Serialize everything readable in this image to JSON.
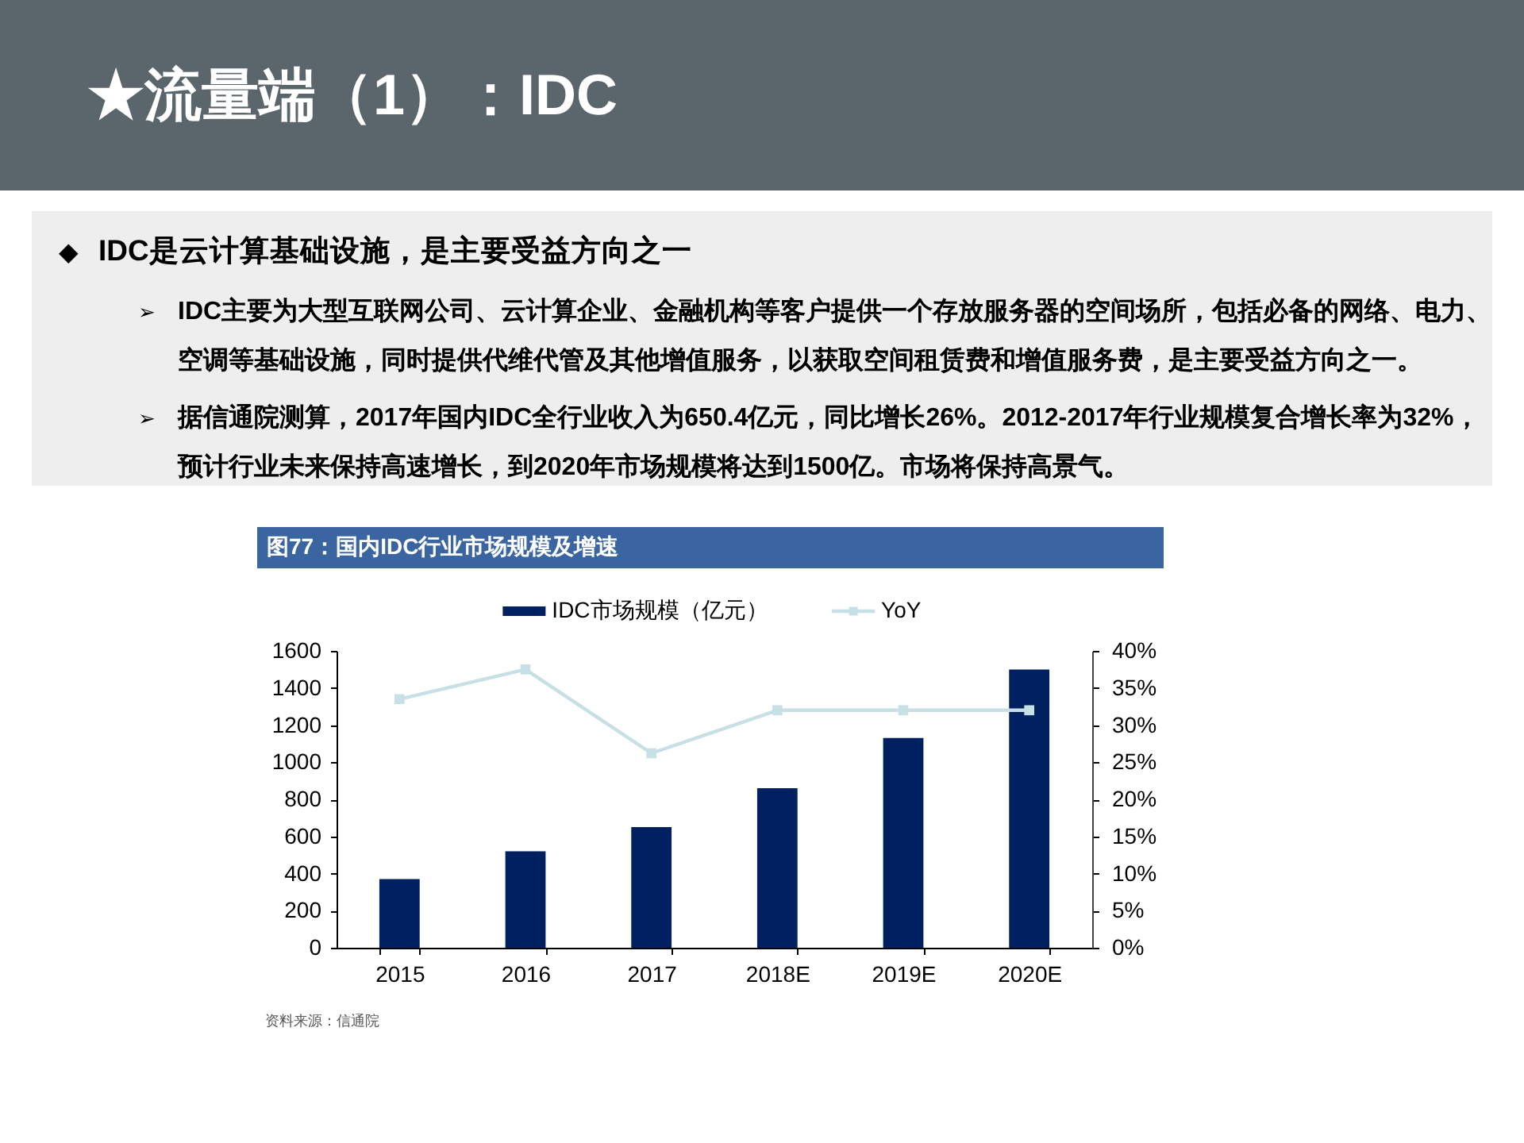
{
  "chart_data": {
    "type": "bar",
    "title": "★流量端（1）：IDC",
    "subtitle": "图77：国内IDC行业市场规模及增速",
    "annotations": [
      "◆ IDC是云计算基础设施，是主要受益方向之一",
      "➢ IDC主要为大型互联网公司、云计算企业、金融机构等客户提供一个存放服务器的空间场所，包括必备的网络、电力、空调等基础设施，同时提供代维代管及其他增值服务，以获取空间租赁费和增值服务费，是主要受益方向之一。",
      "➢ 据信通院测算，2017年国内IDC全行业收入为650.4亿元，同比增长26%。2012-2017年行业规模复合增长率为32%，预计行业未来保持高速增长，到2020年市场规模将达到1500亿。市场将保持高景气。",
      "资料来源：信通院"
    ],
    "categories": [
      "2015",
      "2016",
      "2017",
      "2018E",
      "2019E",
      "2020E"
    ],
    "series": [
      {
        "name": "IDC市场规模（亿元）",
        "color": "#002060",
        "values": [
          370,
          520,
          650,
          860,
          1130,
          1500
        ]
      },
      {
        "name": "YoY",
        "type": "line",
        "axis": "y2",
        "color": "#c6e0e5",
        "marker": "square",
        "values": [
          33.5,
          37.5,
          26.2,
          32,
          32,
          32
        ]
      }
    ],
    "ylim": [
      0,
      1600
    ],
    "yticks": [
      0,
      200,
      400,
      600,
      800,
      1000,
      1200,
      1400,
      1600
    ],
    "y2lim": [
      0,
      40
    ],
    "y2ticks": [
      {
        "value": 0,
        "label": "0%"
      },
      {
        "value": 5,
        "label": "5%"
      },
      {
        "value": 10,
        "label": "10%"
      },
      {
        "value": 15,
        "label": "15%"
      },
      {
        "value": 20,
        "label": "20%"
      },
      {
        "value": 25,
        "label": "25%"
      },
      {
        "value": 30,
        "label": "30%"
      },
      {
        "value": 35,
        "label": "35%"
      },
      {
        "value": 40,
        "label": "40%"
      }
    ],
    "legend": "top"
  }
}
